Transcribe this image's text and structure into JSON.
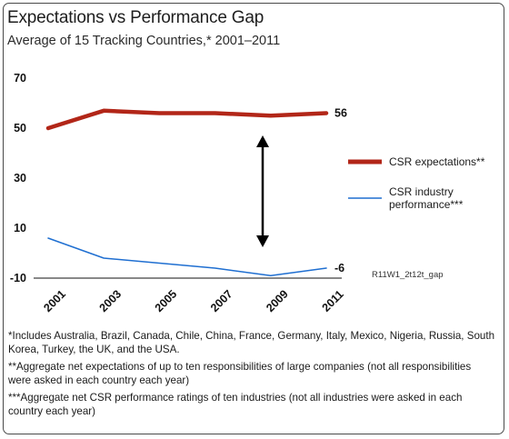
{
  "chart_data": {
    "type": "line",
    "title": "Expectations vs Performance Gap",
    "subtitle": "Average of 15 Tracking Countries,* 2001–2011",
    "x": [
      2001,
      2003,
      2005,
      2007,
      2009,
      2011
    ],
    "x_tick_labels": [
      "2001",
      "2003",
      "2005",
      "2007",
      "2009",
      "2011"
    ],
    "y_ticks": [
      70,
      50,
      30,
      10,
      -10
    ],
    "y_tick_labels": [
      "70",
      "50",
      "30",
      "10",
      "-10"
    ],
    "ylim": [
      -10,
      70
    ],
    "grid": false,
    "legend_position": "right",
    "series": [
      {
        "name": "CSR expectations**",
        "color": "#b22618",
        "values": [
          50,
          57,
          56,
          56,
          55,
          56
        ],
        "end_label": "56"
      },
      {
        "name": "CSR industry performance***",
        "color": "#1f6fd1",
        "values": [
          6,
          -2,
          -4,
          -6,
          -9,
          -6
        ],
        "end_label": "-6"
      }
    ],
    "legend_entries": [
      {
        "lines": [
          "CSR expectations**"
        ]
      },
      {
        "lines": [
          "CSR industry",
          "performance***"
        ]
      }
    ],
    "annotation": "double-headed arrow at 2009 indicating the gap",
    "chart_code": "R11W1_2t12t_gap"
  },
  "footnotes": [
    "*Includes Australia, Brazil, Canada, Chile, China, France, Germany, Italy, Mexico, Nigeria, Russia, South Korea, Turkey, the UK, and the USA.",
    "**Aggregate net expectations of up to ten responsibilities of large companies (not all responsibilities were asked in each country each year)",
    "***Aggregate net CSR performance ratings of ten industries (not all industries were asked in each country each year)"
  ]
}
